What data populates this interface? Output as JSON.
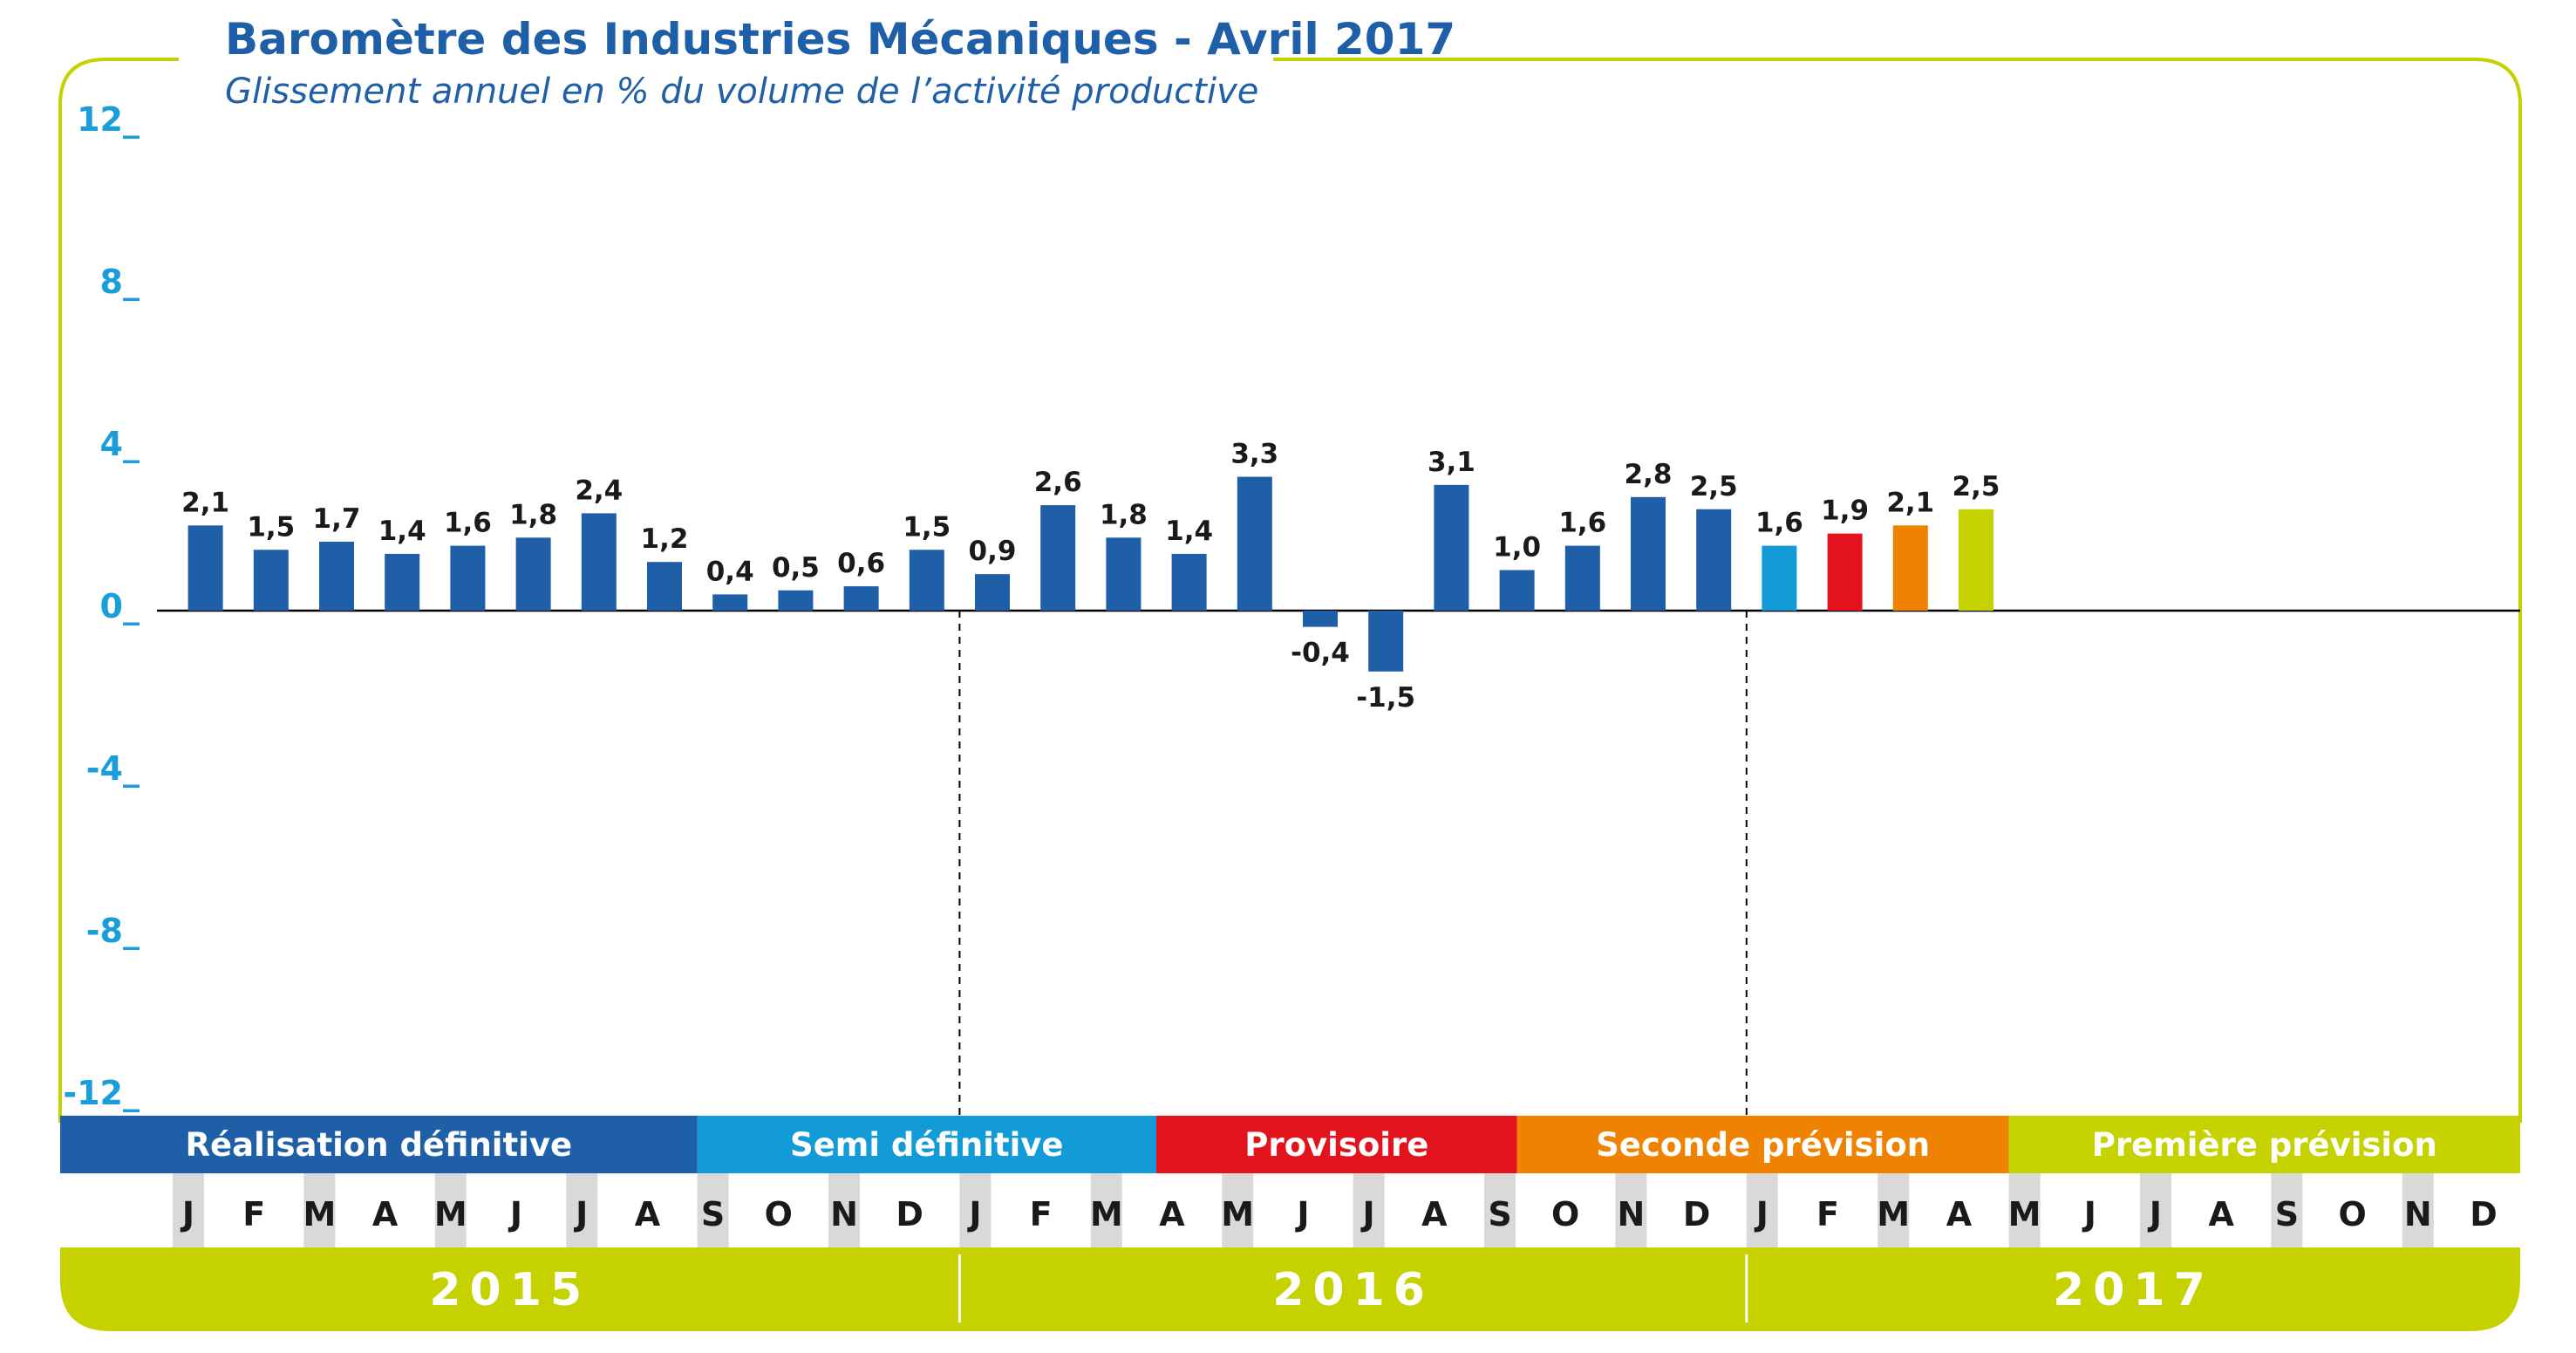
{
  "header": {
    "title": "Baromètre des Industries Mécaniques - Avril 2017",
    "subtitle": "Glissement annuel en % du volume de l’activité productive"
  },
  "colors": {
    "frame": "#c6d200",
    "title": "#1f5fa8",
    "axis_labels": "#1a9ed9",
    "definitive": "#1f5fa8",
    "semi": "#129bd7",
    "provisoire": "#e2131d",
    "seconde": "#ef8200",
    "premiere": "#c6d200",
    "month_shade": "#d9d9d9"
  },
  "chart_data": {
    "type": "bar",
    "title": "Baromètre des Industries Mécaniques - Avril 2017",
    "subtitle": "Glissement annuel en % du volume de l’activité productive",
    "ylim": [
      -12,
      12
    ],
    "yticks": [
      12,
      8,
      4,
      0,
      -4,
      -8,
      -12
    ],
    "ytick_labels": [
      "12_",
      "8_",
      "4_",
      "0_",
      "-4_",
      "-8_",
      "-12_"
    ],
    "categories": [
      "J",
      "F",
      "M",
      "A",
      "M",
      "J",
      "J",
      "A",
      "S",
      "O",
      "N",
      "D",
      "J",
      "F",
      "M",
      "A",
      "M",
      "J",
      "J",
      "A",
      "S",
      "O",
      "N",
      "D",
      "J",
      "F",
      "M",
      "A"
    ],
    "values": [
      2.1,
      1.5,
      1.7,
      1.4,
      1.6,
      1.8,
      2.4,
      1.2,
      0.4,
      0.5,
      0.6,
      1.5,
      0.9,
      2.6,
      1.8,
      1.4,
      3.3,
      -0.4,
      -1.5,
      3.1,
      1.0,
      1.6,
      2.8,
      2.5,
      1.6,
      1.9,
      2.1,
      2.5
    ],
    "value_labels": [
      "2,1",
      "1,5",
      "1,7",
      "1,4",
      "1,6",
      "1,8",
      "2,4",
      "1,2",
      "0,4",
      "0,5",
      "0,6",
      "1,5",
      "0,9",
      "2,6",
      "1,8",
      "1,4",
      "3,3",
      "-0,4",
      "-1,5",
      "3,1",
      "1,0",
      "1,6",
      "2,8",
      "2,5",
      "1,6",
      "1,9",
      "2,1",
      "2,5"
    ],
    "bar_status": [
      "definitive",
      "definitive",
      "definitive",
      "definitive",
      "definitive",
      "definitive",
      "definitive",
      "definitive",
      "definitive",
      "definitive",
      "definitive",
      "definitive",
      "definitive",
      "definitive",
      "definitive",
      "definitive",
      "definitive",
      "definitive",
      "definitive",
      "definitive",
      "definitive",
      "definitive",
      "definitive",
      "definitive",
      "semi",
      "provisoire",
      "seconde",
      "premiere"
    ],
    "months": [
      "J",
      "F",
      "M",
      "A",
      "M",
      "J",
      "J",
      "A",
      "S",
      "O",
      "N",
      "D",
      "J",
      "F",
      "M",
      "A",
      "M",
      "J",
      "J",
      "A",
      "S",
      "O",
      "N",
      "D",
      "J",
      "F",
      "M",
      "A",
      "M",
      "J",
      "J",
      "A",
      "S",
      "O",
      "N",
      "D"
    ],
    "shaded_months": [
      0,
      2,
      4,
      6,
      8,
      10,
      12,
      14,
      16,
      18,
      20,
      22,
      24,
      26,
      28,
      30,
      32,
      34
    ],
    "years": [
      "2015",
      "2016",
      "2017"
    ],
    "phases": [
      {
        "label": "Réalisation définitive",
        "key": "definitive",
        "start": 0,
        "end": 8
      },
      {
        "label": "Semi définitive",
        "key": "semi",
        "start": 8,
        "end": 15
      },
      {
        "label": "Provisoire",
        "key": "provisoire",
        "start": 15,
        "end": 20.5
      },
      {
        "label": "Seconde prévision",
        "key": "seconde",
        "start": 20.5,
        "end": 28
      },
      {
        "label": "Première prévision",
        "key": "premiere",
        "start": 28,
        "end": 36
      }
    ],
    "dashed_dividers": [
      12,
      24
    ],
    "grid": false,
    "legend": "bottom"
  }
}
